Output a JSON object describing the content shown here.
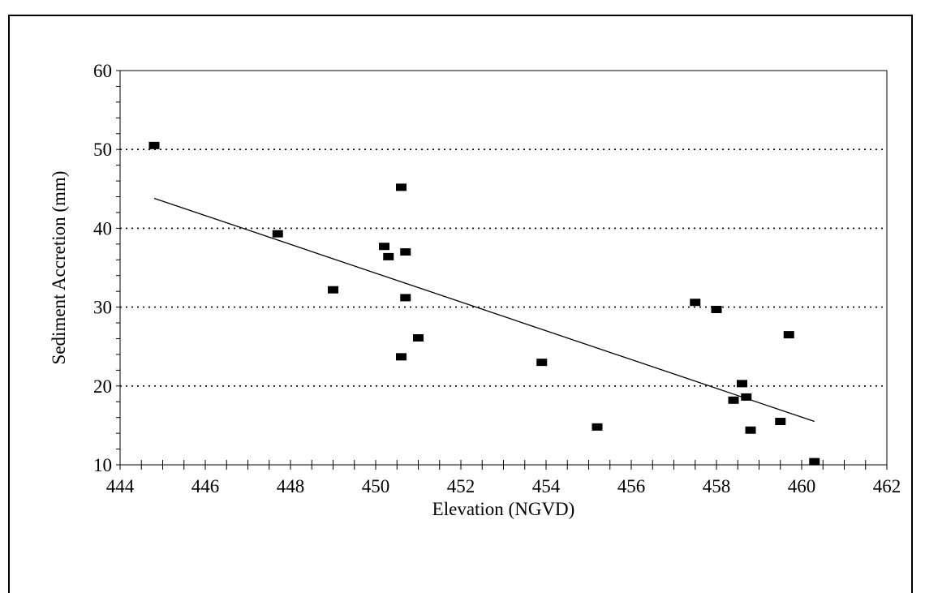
{
  "chart_data": {
    "type": "scatter",
    "title": "",
    "xlabel": "Elevation (NGVD)",
    "ylabel": "Sediment Accretion (mm)",
    "xlim": [
      444,
      462
    ],
    "ylim": [
      10,
      60
    ],
    "x_ticks": [
      444,
      446,
      448,
      450,
      452,
      454,
      456,
      458,
      460,
      462
    ],
    "y_ticks": [
      10,
      20,
      30,
      40,
      50,
      60
    ],
    "x_tick_labels": [
      "444",
      "446",
      "448",
      "450",
      "452",
      "454",
      "456",
      "458",
      "460",
      "462"
    ],
    "y_tick_labels": [
      "10",
      "20",
      "30",
      "40",
      "50",
      "60"
    ],
    "grid": "horizontal dotted",
    "series": [
      {
        "marker": "square",
        "color": "#000000",
        "points": [
          [
            444.8,
            50.5
          ],
          [
            447.7,
            39.3
          ],
          [
            449.0,
            32.2
          ],
          [
            450.2,
            37.7
          ],
          [
            450.3,
            36.4
          ],
          [
            450.6,
            45.2
          ],
          [
            450.6,
            23.7
          ],
          [
            450.7,
            37.0
          ],
          [
            450.7,
            31.2
          ],
          [
            451.0,
            26.1
          ],
          [
            453.9,
            23.0
          ],
          [
            455.2,
            14.8
          ],
          [
            457.5,
            30.6
          ],
          [
            458.0,
            29.7
          ],
          [
            458.4,
            18.2
          ],
          [
            458.6,
            20.3
          ],
          [
            458.7,
            18.6
          ],
          [
            458.8,
            14.4
          ],
          [
            459.5,
            15.5
          ],
          [
            459.7,
            26.5
          ],
          [
            460.3,
            10.4
          ]
        ]
      }
    ],
    "trendline": {
      "x": [
        444.8,
        460.3
      ],
      "y": [
        43.8,
        15.5
      ]
    }
  }
}
